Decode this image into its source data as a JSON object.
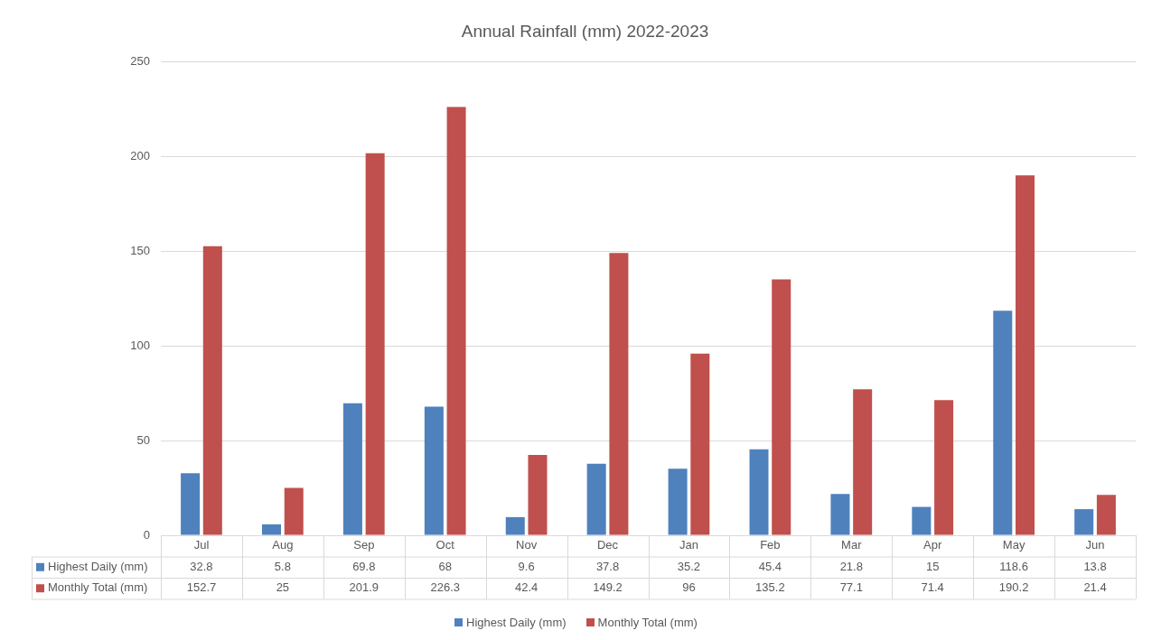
{
  "chart_data": {
    "type": "bar",
    "title": "Annual Rainfall (mm) 2022-2023",
    "categories": [
      "Jul",
      "Aug",
      "Sep",
      "Oct",
      "Nov",
      "Dec",
      "Jan",
      "Feb",
      "Mar",
      "Apr",
      "May",
      "Jun"
    ],
    "series": [
      {
        "name": "Highest Daily (mm)",
        "color": "#4f81bd",
        "values": [
          32.8,
          5.8,
          69.8,
          68,
          9.6,
          37.8,
          35.2,
          45.4,
          21.8,
          15,
          118.6,
          13.8
        ]
      },
      {
        "name": "Monthly Total (mm)",
        "color": "#c0504d",
        "values": [
          152.7,
          25,
          201.9,
          226.3,
          42.4,
          149.2,
          96,
          135.2,
          77.1,
          71.4,
          190.2,
          21.4
        ]
      }
    ],
    "ylim": [
      0,
      250
    ],
    "yticks": [
      0,
      50,
      100,
      150,
      200,
      250
    ],
    "grid": "y",
    "legend": "bottom",
    "data_labels": true
  }
}
